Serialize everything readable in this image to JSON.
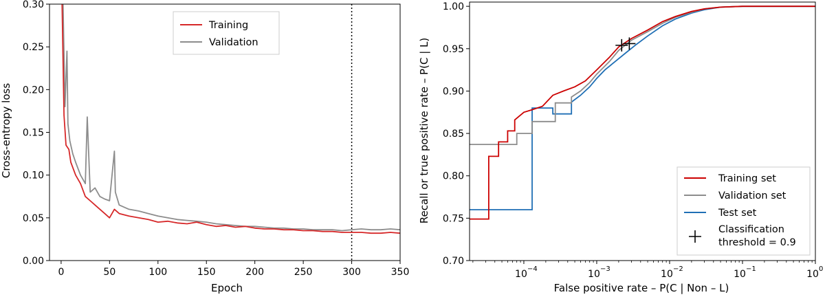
{
  "chart_data": [
    {
      "type": "line",
      "title": "",
      "xlabel": "Epoch",
      "ylabel": "Cross-entropy loss",
      "xlim": [
        -12,
        350
      ],
      "ylim": [
        0.0,
        0.3
      ],
      "xticks": [
        0,
        50,
        100,
        150,
        200,
        250,
        300,
        350
      ],
      "xtick_labels": [
        "0",
        "50",
        "100",
        "150",
        "200",
        "250",
        "300",
        "350"
      ],
      "yticks": [
        0.0,
        0.05,
        0.1,
        0.15,
        0.2,
        0.25,
        0.3
      ],
      "ytick_labels": [
        "0.00",
        "0.05",
        "0.10",
        "0.15",
        "0.20",
        "0.25",
        "0.30"
      ],
      "legend_position": "top-center",
      "vline": {
        "x": 300,
        "style": "dotted"
      },
      "series": [
        {
          "name": "Training",
          "color": "#d62728",
          "x": [
            1,
            3,
            5,
            8,
            10,
            15,
            20,
            25,
            30,
            35,
            40,
            45,
            50,
            55,
            60,
            70,
            80,
            90,
            100,
            110,
            120,
            130,
            140,
            150,
            160,
            170,
            180,
            190,
            200,
            210,
            220,
            230,
            240,
            250,
            260,
            270,
            280,
            290,
            300,
            310,
            320,
            330,
            340,
            350
          ],
          "y": [
            0.3,
            0.17,
            0.135,
            0.13,
            0.115,
            0.1,
            0.09,
            0.075,
            0.07,
            0.065,
            0.06,
            0.055,
            0.05,
            0.06,
            0.055,
            0.052,
            0.05,
            0.048,
            0.045,
            0.046,
            0.044,
            0.043,
            0.045,
            0.042,
            0.04,
            0.041,
            0.039,
            0.04,
            0.038,
            0.037,
            0.037,
            0.036,
            0.036,
            0.035,
            0.035,
            0.034,
            0.034,
            0.033,
            0.033,
            0.033,
            0.032,
            0.032,
            0.033,
            0.032
          ]
        },
        {
          "name": "Validation",
          "color": "#8c8c8c",
          "x": [
            2,
            4,
            6,
            7,
            9,
            12,
            15,
            20,
            25,
            27,
            30,
            35,
            40,
            45,
            50,
            55,
            56,
            60,
            70,
            80,
            90,
            100,
            110,
            120,
            130,
            140,
            150,
            160,
            170,
            180,
            190,
            200,
            210,
            220,
            230,
            240,
            250,
            260,
            270,
            280,
            290,
            300,
            310,
            320,
            330,
            340,
            350
          ],
          "y": [
            0.3,
            0.18,
            0.245,
            0.16,
            0.14,
            0.125,
            0.115,
            0.1,
            0.09,
            0.168,
            0.08,
            0.085,
            0.075,
            0.072,
            0.07,
            0.128,
            0.08,
            0.065,
            0.06,
            0.058,
            0.055,
            0.052,
            0.05,
            0.048,
            0.047,
            0.046,
            0.045,
            0.043,
            0.042,
            0.041,
            0.04,
            0.04,
            0.039,
            0.038,
            0.038,
            0.037,
            0.037,
            0.036,
            0.036,
            0.036,
            0.035,
            0.036,
            0.037,
            0.036,
            0.036,
            0.037,
            0.036
          ]
        }
      ]
    },
    {
      "type": "line",
      "title": "",
      "xscale": "log",
      "xlabel": "False positive rate – P(C | Non – L)",
      "ylabel": "Recall or true positive rate – P(C | L)",
      "xlim": [
        1.8e-05,
        1.0
      ],
      "ylim": [
        0.7,
        1.005
      ],
      "xticks": [
        0.0001,
        0.001,
        0.01,
        0.1,
        1.0
      ],
      "xtick_labels": [
        "10",
        "10",
        "10",
        "10",
        "10"
      ],
      "xtick_exponents": [
        "−4",
        "−3",
        "−2",
        "−1",
        "0"
      ],
      "yticks": [
        0.7,
        0.75,
        0.8,
        0.85,
        0.9,
        0.95,
        1.0
      ],
      "ytick_labels": [
        "0.70",
        "0.75",
        "0.80",
        "0.85",
        "0.90",
        "0.95",
        "1.00"
      ],
      "legend_position": "bottom-right",
      "legend_entries": [
        "Training set",
        "Validation set",
        "Test set",
        "Classification",
        "threshold = 0.9"
      ],
      "series": [
        {
          "name": "Training set",
          "color": "#cc0000",
          "x": [
            1.8e-05,
            3.3e-05,
            3.3e-05,
            4.5e-05,
            4.5e-05,
            6e-05,
            6e-05,
            7.5e-05,
            7.5e-05,
            0.0001,
            0.00013,
            0.00018,
            0.00025,
            0.00035,
            0.0005,
            0.0007,
            0.001,
            0.0015,
            0.002,
            0.003,
            0.005,
            0.008,
            0.012,
            0.02,
            0.03,
            0.05,
            0.1,
            0.2,
            1.0
          ],
          "y": [
            0.749,
            0.749,
            0.823,
            0.823,
            0.84,
            0.84,
            0.853,
            0.853,
            0.866,
            0.875,
            0.878,
            0.882,
            0.895,
            0.9,
            0.905,
            0.912,
            0.925,
            0.94,
            0.952,
            0.962,
            0.972,
            0.982,
            0.988,
            0.994,
            0.997,
            0.999,
            1.0,
            1.0,
            1.0
          ]
        },
        {
          "name": "Validation set",
          "color": "#8c8c8c",
          "x": [
            1.8e-05,
            8e-05,
            8e-05,
            0.00013,
            0.00013,
            0.00027,
            0.00027,
            0.00045,
            0.00045,
            0.0006,
            0.0008,
            0.001,
            0.0015,
            0.002,
            0.003,
            0.005,
            0.008,
            0.012,
            0.02,
            0.03,
            0.05,
            0.1,
            1.0
          ],
          "y": [
            0.837,
            0.837,
            0.85,
            0.85,
            0.864,
            0.864,
            0.886,
            0.886,
            0.893,
            0.9,
            0.91,
            0.92,
            0.935,
            0.948,
            0.96,
            0.97,
            0.98,
            0.987,
            0.993,
            0.997,
            0.999,
            1.0,
            1.0
          ]
        },
        {
          "name": "Test set",
          "color": "#1f6fb5",
          "x": [
            1.8e-05,
            0.00013,
            0.00013,
            0.00025,
            0.00025,
            0.00045,
            0.00045,
            0.0006,
            0.0008,
            0.001,
            0.0013,
            0.0018,
            0.0025,
            0.0035,
            0.005,
            0.008,
            0.012,
            0.02,
            0.03,
            0.05,
            0.1,
            1.0
          ],
          "y": [
            0.76,
            0.76,
            0.88,
            0.88,
            0.873,
            0.873,
            0.887,
            0.895,
            0.905,
            0.915,
            0.925,
            0.935,
            0.945,
            0.955,
            0.965,
            0.977,
            0.985,
            0.992,
            0.996,
            0.999,
            1.0,
            1.0
          ]
        }
      ],
      "markers": [
        {
          "name": "Classification threshold = 0.9",
          "shape": "plus",
          "color": "#000000",
          "x": 0.0022,
          "y": 0.954
        },
        {
          "name": "Classification threshold = 0.9",
          "shape": "plus",
          "color": "#000000",
          "x": 0.0028,
          "y": 0.956
        }
      ]
    }
  ]
}
